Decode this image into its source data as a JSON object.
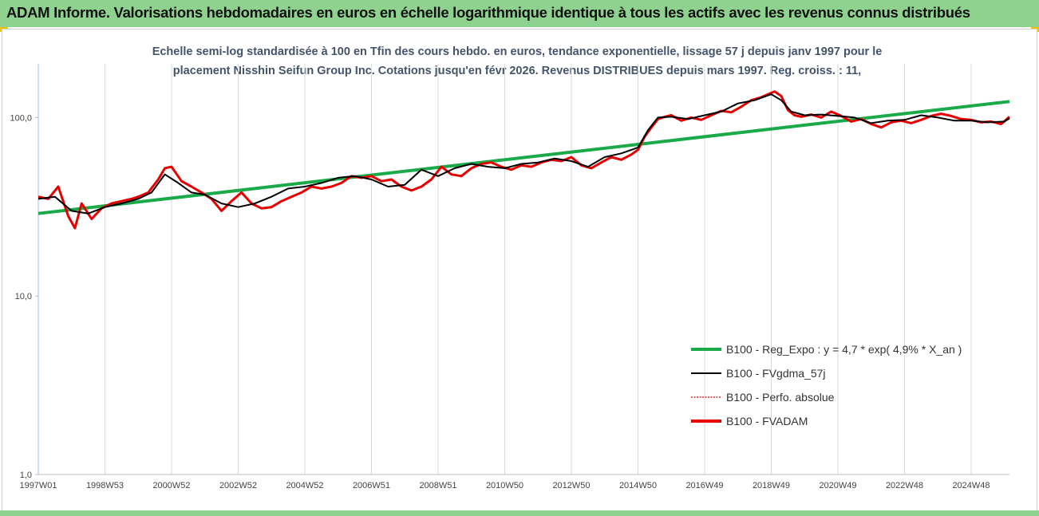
{
  "banner": {
    "title": "ADAM Informe. Valorisations hebdomadaires en euros en échelle logarithmique identique à tous les actifs avec les revenus connus distribués"
  },
  "colors": {
    "banner_bg": "#8fd28f",
    "corner": "#f2c200",
    "reg_expo": "#1aaa4a",
    "fvgdma": "#000000",
    "perfo": "#d40000",
    "fvadam": "#e60000",
    "gridline": "#d9d9d9"
  },
  "chart_data": {
    "type": "line",
    "title_lines": [
      "Echelle semi-log standardisée à 100 en Tfin des cours hebdo. en euros, tendance exponentielle, lissage 57 j depuis janv 1997 pour le",
      "placement Nisshin Seifun Group Inc. Cotations jusqu'en févr 2026. Revenus DISTRIBUES depuis mars 1997. Reg. croiss. : 11,"
    ],
    "y_scale": "log",
    "ylim": [
      1,
      200
    ],
    "y_ticks": [
      "1,0",
      "10,0",
      "100,0"
    ],
    "y_tick_values": [
      1,
      10,
      100
    ],
    "xlim": [
      1997.0,
      2026.15
    ],
    "x_ticks": [
      "1997W01",
      "1998W53",
      "2000W52",
      "2002W52",
      "2004W52",
      "2006W51",
      "2008W51",
      "2010W50",
      "2012W50",
      "2014W50",
      "2016W49",
      "2018W49",
      "2020W49",
      "2022W48",
      "2024W48"
    ],
    "x_tick_values": [
      1997.0,
      1999.0,
      2001.0,
      2003.0,
      2005.0,
      2007.0,
      2009.0,
      2011.0,
      2013.0,
      2015.0,
      2017.0,
      2019.0,
      2021.0,
      2023.0,
      2025.0
    ],
    "grid": "vertical",
    "legend_position": "lower-right",
    "series": [
      {
        "name": "B100 - Reg_Expo : y = 4,7 * exp( 4,9% *  X_an )",
        "role": "trend",
        "x": [
          1997.0,
          2026.15
        ],
        "values": [
          29.0,
          123.0
        ]
      },
      {
        "name": "B100 - FVgdma_57j",
        "role": "smooth",
        "x": [
          1997.0,
          1997.5,
          1998.0,
          1998.5,
          1999.0,
          1999.5,
          2000.0,
          2000.4,
          2000.8,
          2001.2,
          2001.6,
          2002.0,
          2002.5,
          2003.0,
          2003.5,
          2004.0,
          2004.5,
          2005.0,
          2005.5,
          2006.0,
          2006.5,
          2007.0,
          2007.5,
          2008.0,
          2008.5,
          2009.0,
          2009.5,
          2010.0,
          2010.5,
          2011.0,
          2011.5,
          2012.0,
          2012.5,
          2013.0,
          2013.5,
          2014.0,
          2014.5,
          2015.0,
          2015.3,
          2015.6,
          2016.0,
          2016.5,
          2017.0,
          2017.5,
          2018.0,
          2018.5,
          2019.0,
          2019.3,
          2019.6,
          2020.0,
          2020.5,
          2021.0,
          2021.5,
          2022.0,
          2022.5,
          2023.0,
          2023.5,
          2024.0,
          2024.5,
          2025.0,
          2025.5,
          2026.0,
          2026.15
        ],
        "values": [
          35.0,
          36.0,
          30.0,
          29.0,
          31.5,
          33.0,
          35.0,
          38.0,
          48.0,
          43.0,
          38.0,
          37.0,
          33.0,
          31.5,
          33.0,
          36.0,
          40.0,
          41.0,
          43.0,
          46.0,
          47.0,
          45.0,
          41.0,
          42.0,
          51.0,
          47.0,
          52.0,
          55.0,
          53.0,
          52.0,
          55.0,
          56.0,
          59.0,
          57.0,
          53.0,
          60.0,
          63.0,
          68.0,
          85.0,
          100.0,
          101.0,
          98.0,
          103.0,
          108.0,
          120.0,
          125.0,
          135.0,
          125.0,
          108.0,
          103.0,
          104.0,
          102.0,
          100.0,
          93.0,
          96.0,
          97.0,
          103.0,
          100.0,
          96.0,
          96.0,
          94.0,
          95.0,
          99.0
        ]
      },
      {
        "name": "B100 - Perfo. absolue",
        "role": "perfo",
        "x": [],
        "values": []
      },
      {
        "name": "B100 - FVADAM",
        "role": "main",
        "x": [
          1997.0,
          1997.3,
          1997.6,
          1997.9,
          1998.1,
          1998.3,
          1998.6,
          1998.9,
          1999.2,
          1999.5,
          1999.8,
          2000.0,
          2000.3,
          2000.6,
          2000.8,
          2001.0,
          2001.3,
          2001.6,
          2001.9,
          2002.2,
          2002.5,
          2002.8,
          2003.1,
          2003.4,
          2003.7,
          2004.0,
          2004.3,
          2004.6,
          2004.9,
          2005.2,
          2005.5,
          2005.8,
          2006.1,
          2006.4,
          2006.7,
          2007.0,
          2007.3,
          2007.6,
          2007.9,
          2008.2,
          2008.5,
          2008.8,
          2009.1,
          2009.4,
          2009.7,
          2010.0,
          2010.3,
          2010.6,
          2010.9,
          2011.2,
          2011.5,
          2011.8,
          2012.1,
          2012.4,
          2012.7,
          2013.0,
          2013.3,
          2013.6,
          2013.9,
          2014.2,
          2014.5,
          2014.8,
          2015.0,
          2015.2,
          2015.4,
          2015.6,
          2015.8,
          2016.0,
          2016.3,
          2016.6,
          2016.9,
          2017.2,
          2017.5,
          2017.8,
          2018.1,
          2018.4,
          2018.7,
          2018.9,
          2019.1,
          2019.3,
          2019.5,
          2019.7,
          2019.9,
          2020.2,
          2020.5,
          2020.8,
          2021.1,
          2021.4,
          2021.7,
          2022.0,
          2022.3,
          2022.6,
          2022.9,
          2023.2,
          2023.5,
          2023.8,
          2024.1,
          2024.4,
          2024.7,
          2025.0,
          2025.3,
          2025.6,
          2025.9,
          2026.15
        ],
        "values": [
          36.0,
          35.0,
          41.0,
          28.0,
          24.0,
          33.0,
          27.0,
          31.0,
          33.0,
          34.0,
          35.0,
          36.0,
          38.0,
          45.0,
          52.0,
          53.0,
          44.0,
          41.0,
          38.0,
          35.0,
          30.0,
          34.0,
          38.0,
          33.0,
          31.0,
          31.5,
          34.0,
          36.0,
          38.0,
          41.0,
          40.0,
          41.0,
          43.0,
          47.0,
          46.0,
          47.0,
          44.0,
          45.0,
          41.0,
          39.0,
          41.0,
          45.0,
          53.0,
          48.0,
          47.0,
          52.0,
          55.0,
          56.0,
          53.0,
          51.0,
          54.0,
          53.0,
          56.0,
          58.0,
          57.0,
          60.0,
          54.0,
          52.0,
          56.0,
          60.0,
          58.0,
          62.0,
          66.0,
          78.0,
          88.0,
          98.0,
          101.0,
          103.0,
          96.0,
          100.0,
          97.0,
          103.0,
          109.0,
          107.0,
          115.0,
          125.0,
          130.0,
          135.0,
          140.0,
          132.0,
          110.0,
          103.0,
          101.0,
          104.0,
          100.0,
          108.0,
          102.0,
          95.0,
          98.0,
          92.0,
          88.0,
          94.0,
          96.0,
          93.0,
          97.0,
          102.0,
          105.0,
          102.0,
          98.0,
          97.0,
          94.0,
          95.0,
          92.0,
          101.0
        ]
      }
    ]
  }
}
